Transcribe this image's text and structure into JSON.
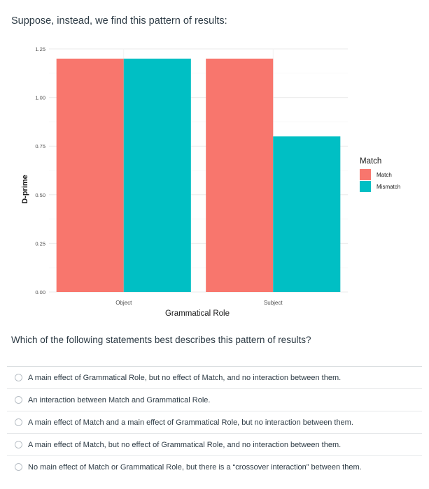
{
  "intro_text": "Suppose, instead, we find this pattern of results:",
  "question_text": "Which of the following statements best describes this pattern of results?",
  "options": [
    "A main effect of Grammatical Role, but no effect of Match, and no interaction between them.",
    "An interaction between Match and Grammatical Role.",
    "A main effect of Match and a main effect of Grammatical Role, but no interaction between them.",
    "A main effect of Match, but no effect of Grammatical Role, and no interaction between them.",
    "No main effect of Match or Grammatical Role, but there is a “crossover interaction” between them."
  ],
  "chart_data": {
    "type": "bar",
    "title": "",
    "xlabel": "Grammatical Role",
    "ylabel": "D-prime",
    "categories": [
      "Object",
      "Subject"
    ],
    "series": [
      {
        "name": "Match",
        "values": [
          1.2,
          1.2
        ],
        "color": "#f8766d"
      },
      {
        "name": "Mismatch",
        "values": [
          1.2,
          0.8
        ],
        "color": "#00bfc4"
      }
    ],
    "ylim": [
      0,
      1.25
    ],
    "yticks": [
      0,
      0.25,
      0.5,
      0.75,
      1.0,
      1.25
    ],
    "ytick_labels": [
      "0.00",
      "0.25",
      "0.50",
      "0.75",
      "1.00",
      "1.25"
    ],
    "legend_title": "Match",
    "legend_position": "right",
    "grid": true
  }
}
